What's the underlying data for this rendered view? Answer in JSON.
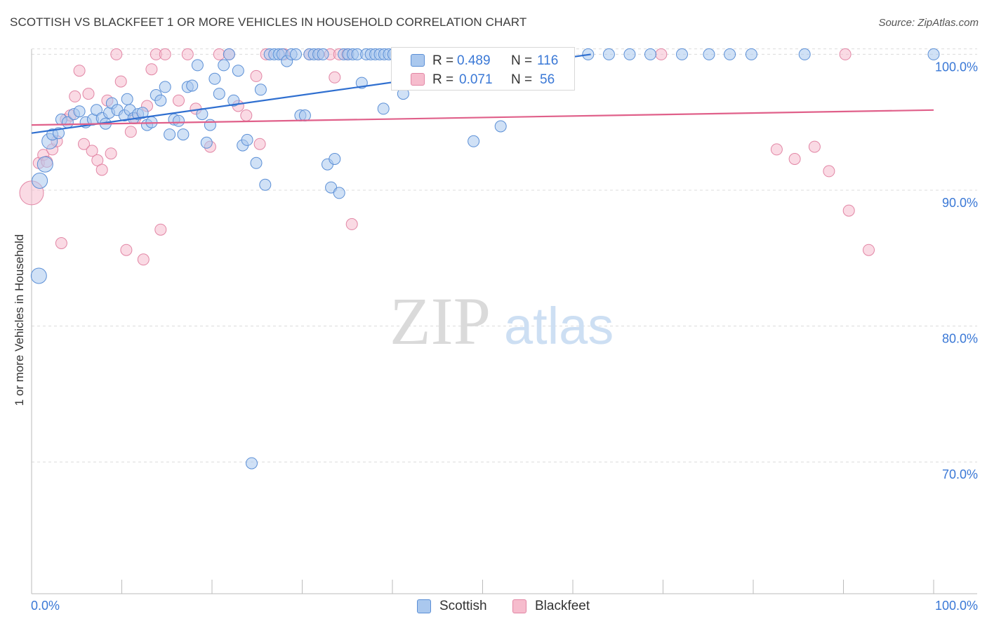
{
  "title": "SCOTTISH VS BLACKFEET 1 OR MORE VEHICLES IN HOUSEHOLD CORRELATION CHART",
  "source": "Source: ZipAtlas.com",
  "watermark": {
    "zip": "ZIP",
    "atlas": "atlas"
  },
  "legend_top": {
    "rows": [
      {
        "r_label": "R =",
        "r_value": "0.489",
        "n_label": "N =",
        "n_value": "116",
        "color": "#aac8ee",
        "stroke": "#5b8fd6"
      },
      {
        "r_label": "R =",
        "r_value": "0.071",
        "n_label": "N =",
        "n_value": "56",
        "color": "#f6bccd",
        "stroke": "#e286a5"
      }
    ]
  },
  "legend_bottom": [
    {
      "label": "Scottish",
      "color": "#aac8ee",
      "stroke": "#5b8fd6"
    },
    {
      "label": "Blackfeet",
      "color": "#f6bccd",
      "stroke": "#e286a5"
    }
  ],
  "colors": {
    "scottish_fill": "#aac8ee",
    "scottish_stroke": "#5b8fd6",
    "scottish_line": "#2f6fd0",
    "blackfeet_fill": "#f6bccd",
    "blackfeet_stroke": "#e286a5",
    "blackfeet_line": "#e0608a",
    "tick_label": "#3a78d6",
    "grid": "#dcdcdc"
  },
  "chart_data": {
    "type": "scatter",
    "title": "SCOTTISH VS BLACKFEET 1 OR MORE VEHICLES IN HOUSEHOLD CORRELATION CHART",
    "xlabel": "",
    "ylabel": "1 or more Vehicles in Household",
    "xlim": [
      0,
      100
    ],
    "ylim": [
      60.3,
      100.9
    ],
    "x_tick_labels": [
      "0.0%",
      "100.0%"
    ],
    "y_ticks": [
      70,
      80,
      90,
      100
    ],
    "y_tick_labels": [
      "70.0%",
      "80.0%",
      "90.0%",
      "100.0%"
    ],
    "grid": true,
    "legend_position": "top-center",
    "series": [
      {
        "name": "Scottish",
        "R": 0.489,
        "N": 116,
        "trend": {
          "x": [
            0,
            62
          ],
          "y": [
            94.2,
            100.0
          ]
        },
        "points": [
          [
            0.8,
            83.7,
            2
          ],
          [
            0.9,
            90.7,
            2
          ],
          [
            1.5,
            91.9,
            2
          ],
          [
            2.0,
            93.6,
            2
          ],
          [
            2.3,
            94.1,
            1
          ],
          [
            3.0,
            94.2,
            1
          ],
          [
            3.3,
            95.2,
            1
          ],
          [
            4.0,
            95.0,
            1
          ],
          [
            4.7,
            95.6,
            1
          ],
          [
            5.3,
            95.8,
            1
          ],
          [
            6.0,
            95.0,
            1
          ],
          [
            6.8,
            95.2,
            1
          ],
          [
            7.2,
            95.9,
            1
          ],
          [
            7.8,
            95.3,
            1
          ],
          [
            8.2,
            94.9,
            1
          ],
          [
            8.6,
            95.7,
            1
          ],
          [
            8.9,
            96.4,
            1
          ],
          [
            9.5,
            95.9,
            1
          ],
          [
            10.3,
            95.5,
            1
          ],
          [
            10.6,
            96.7,
            1
          ],
          [
            10.9,
            95.9,
            1
          ],
          [
            11.3,
            95.3,
            1
          ],
          [
            11.8,
            95.6,
            1
          ],
          [
            12.3,
            95.7,
            1
          ],
          [
            12.8,
            94.8,
            1
          ],
          [
            13.3,
            95.0,
            1
          ],
          [
            13.8,
            97.0,
            1
          ],
          [
            14.3,
            96.6,
            1
          ],
          [
            14.8,
            97.6,
            1
          ],
          [
            15.3,
            94.1,
            1
          ],
          [
            15.8,
            95.2,
            1
          ],
          [
            16.3,
            95.1,
            1
          ],
          [
            16.8,
            94.1,
            1
          ],
          [
            17.3,
            97.6,
            1
          ],
          [
            17.8,
            97.7,
            1
          ],
          [
            18.4,
            99.2,
            1
          ],
          [
            18.9,
            95.6,
            1
          ],
          [
            19.4,
            93.5,
            1
          ],
          [
            19.8,
            94.8,
            1
          ],
          [
            20.3,
            98.2,
            1
          ],
          [
            20.8,
            97.1,
            1
          ],
          [
            21.3,
            99.2,
            1
          ],
          [
            21.9,
            100.0,
            1
          ],
          [
            22.4,
            96.6,
            1
          ],
          [
            22.9,
            98.8,
            1
          ],
          [
            23.4,
            93.3,
            1
          ],
          [
            23.9,
            93.7,
            1
          ],
          [
            24.4,
            69.9,
            1
          ],
          [
            24.9,
            92.0,
            1
          ],
          [
            25.4,
            97.4,
            1
          ],
          [
            25.9,
            90.4,
            1
          ],
          [
            26.4,
            100.0,
            1
          ],
          [
            26.9,
            100.0,
            1
          ],
          [
            27.4,
            100.0,
            1
          ],
          [
            27.8,
            100.0,
            1
          ],
          [
            28.3,
            99.5,
            1
          ],
          [
            28.8,
            100.0,
            1
          ],
          [
            29.3,
            100.0,
            1
          ],
          [
            29.8,
            95.5,
            1
          ],
          [
            30.3,
            95.5,
            1
          ],
          [
            30.8,
            100.0,
            1
          ],
          [
            31.3,
            100.0,
            1
          ],
          [
            31.8,
            100.0,
            1
          ],
          [
            32.3,
            100.0,
            1
          ],
          [
            32.8,
            91.9,
            1
          ],
          [
            33.2,
            90.2,
            1
          ],
          [
            33.6,
            92.3,
            1
          ],
          [
            34.1,
            89.8,
            1
          ],
          [
            34.6,
            100.0,
            1
          ],
          [
            35.1,
            100.0,
            1
          ],
          [
            35.6,
            100.0,
            1
          ],
          [
            36.1,
            100.0,
            1
          ],
          [
            36.6,
            97.9,
            1
          ],
          [
            37.1,
            100.0,
            1
          ],
          [
            37.6,
            100.0,
            1
          ],
          [
            38.1,
            100.0,
            1
          ],
          [
            38.6,
            100.0,
            1
          ],
          [
            39.1,
            100.0,
            1
          ],
          [
            39.6,
            100.0,
            1
          ],
          [
            40.1,
            100.0,
            1
          ],
          [
            40.6,
            100.0,
            1
          ],
          [
            41.1,
            100.0,
            1
          ],
          [
            41.6,
            100.0,
            1
          ],
          [
            42.1,
            100.0,
            1
          ],
          [
            42.6,
            100.0,
            1
          ],
          [
            43.1,
            100.0,
            1
          ],
          [
            43.6,
            100.0,
            1
          ],
          [
            44.1,
            100.0,
            1
          ],
          [
            44.6,
            100.0,
            1
          ],
          [
            45.1,
            100.0,
            1
          ],
          [
            45.6,
            100.0,
            1
          ],
          [
            46.1,
            100.0,
            1
          ],
          [
            46.6,
            100.0,
            1
          ],
          [
            47.1,
            100.0,
            1
          ],
          [
            47.6,
            100.0,
            1
          ],
          [
            48.1,
            100.0,
            1
          ],
          [
            48.6,
            100.0,
            1
          ],
          [
            49.1,
            100.0,
            1
          ],
          [
            49.6,
            100.0,
            1
          ],
          [
            50.1,
            100.0,
            1
          ],
          [
            50.6,
            100.0,
            1
          ],
          [
            51.1,
            100.0,
            1
          ],
          [
            51.6,
            100.0,
            1
          ],
          [
            52.1,
            100.0,
            1
          ],
          [
            52.6,
            100.0,
            1
          ],
          [
            53.1,
            100.0,
            1
          ],
          [
            53.6,
            100.0,
            1
          ],
          [
            54.1,
            100.0,
            1
          ],
          [
            54.6,
            100.0,
            1
          ],
          [
            55.1,
            100.0,
            1
          ],
          [
            39.0,
            96.0,
            1
          ],
          [
            41.2,
            97.1,
            1
          ],
          [
            49.0,
            93.6,
            1
          ],
          [
            52.0,
            94.7,
            1
          ],
          [
            61.7,
            100.0,
            1
          ],
          [
            64.0,
            100.0,
            1
          ],
          [
            66.3,
            100.0,
            1
          ],
          [
            68.6,
            100.0,
            1
          ],
          [
            72.1,
            100.0,
            1
          ],
          [
            75.1,
            100.0,
            1
          ],
          [
            77.4,
            100.0,
            1
          ],
          [
            79.8,
            100.0,
            1
          ],
          [
            85.7,
            100.0,
            1
          ],
          [
            100.0,
            100.0,
            1
          ]
        ]
      },
      {
        "name": "Blackfeet",
        "R": 0.071,
        "N": 56,
        "trend": {
          "x": [
            0,
            100
          ],
          "y": [
            94.8,
            95.9
          ]
        },
        "points": [
          [
            0.0,
            89.8,
            3
          ],
          [
            0.8,
            92.0,
            1
          ],
          [
            1.3,
            92.6,
            1
          ],
          [
            1.7,
            92.1,
            1
          ],
          [
            2.3,
            93.0,
            1
          ],
          [
            2.8,
            93.6,
            1
          ],
          [
            3.3,
            86.1,
            1
          ],
          [
            3.8,
            95.2,
            1
          ],
          [
            4.3,
            95.5,
            1
          ],
          [
            4.8,
            96.9,
            1
          ],
          [
            5.3,
            98.8,
            1
          ],
          [
            5.8,
            93.4,
            1
          ],
          [
            6.3,
            97.1,
            1
          ],
          [
            6.7,
            92.9,
            1
          ],
          [
            7.3,
            92.2,
            1
          ],
          [
            7.8,
            91.5,
            1
          ],
          [
            8.4,
            96.6,
            1
          ],
          [
            8.8,
            92.7,
            1
          ],
          [
            9.4,
            100.0,
            1
          ],
          [
            9.9,
            98.0,
            1
          ],
          [
            10.5,
            85.6,
            1
          ],
          [
            11.0,
            94.3,
            1
          ],
          [
            11.5,
            95.3,
            1
          ],
          [
            12.4,
            84.9,
            1
          ],
          [
            12.8,
            96.2,
            1
          ],
          [
            13.3,
            98.9,
            1
          ],
          [
            13.8,
            100.0,
            1
          ],
          [
            14.3,
            87.1,
            1
          ],
          [
            14.8,
            100.0,
            1
          ],
          [
            16.3,
            96.6,
            1
          ],
          [
            17.3,
            100.0,
            1
          ],
          [
            18.2,
            96.0,
            1
          ],
          [
            19.8,
            93.2,
            1
          ],
          [
            20.8,
            100.0,
            1
          ],
          [
            21.9,
            100.0,
            1
          ],
          [
            22.9,
            96.2,
            1
          ],
          [
            23.8,
            95.5,
            1
          ],
          [
            24.9,
            98.4,
            1
          ],
          [
            25.3,
            93.4,
            1
          ],
          [
            26.0,
            100.0,
            1
          ],
          [
            28.0,
            100.0,
            1
          ],
          [
            30.8,
            100.0,
            1
          ],
          [
            31.8,
            100.0,
            1
          ],
          [
            33.1,
            100.0,
            1
          ],
          [
            33.6,
            98.3,
            1
          ],
          [
            34.1,
            100.0,
            1
          ],
          [
            35.0,
            100.0,
            1
          ],
          [
            35.5,
            87.5,
            1
          ],
          [
            69.8,
            100.0,
            1
          ],
          [
            82.6,
            93.0,
            1
          ],
          [
            84.6,
            92.3,
            1
          ],
          [
            86.8,
            93.2,
            1
          ],
          [
            88.4,
            91.4,
            1
          ],
          [
            90.2,
            100.0,
            1
          ],
          [
            90.6,
            88.5,
            1
          ],
          [
            92.8,
            85.6,
            1
          ]
        ]
      }
    ]
  }
}
